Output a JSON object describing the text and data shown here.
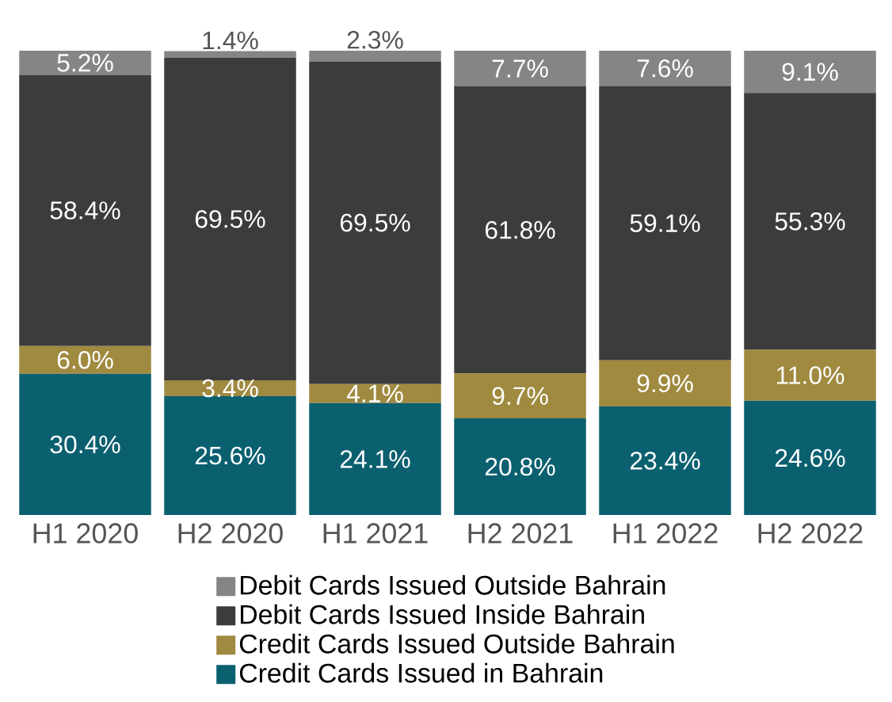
{
  "chart_data": {
    "type": "bar",
    "stacked": true,
    "categories": [
      "H1 2020",
      "H2 2020",
      "H1 2021",
      "H2 2021",
      "H1 2022",
      "H2 2022"
    ],
    "ylim": [
      0,
      100
    ],
    "tick_labels": "x",
    "legend": "bottom",
    "series": [
      {
        "name": "Credit Cards Issued in Bahrain",
        "color": "#0b6070",
        "values": [
          30.4,
          25.6,
          24.1,
          20.8,
          23.4,
          24.6
        ],
        "value_labels": [
          "30.4%",
          "25.6%",
          "24.1%",
          "20.8%",
          "23.4%",
          "24.6%"
        ]
      },
      {
        "name": "Credit Cards Issued Outside Bahrain",
        "color": "#a08a40",
        "values": [
          6.0,
          3.4,
          4.1,
          9.7,
          9.9,
          11.0
        ],
        "value_labels": [
          "6.0%",
          "3.4%",
          "4.1%",
          "9.7%",
          "9.9%",
          "11.0%"
        ]
      },
      {
        "name": "Debit Cards Issued Inside Bahrain",
        "color": "#3c3c3c",
        "values": [
          58.4,
          69.5,
          69.5,
          61.8,
          59.1,
          55.3
        ],
        "value_labels": [
          "58.4%",
          "69.5%",
          "69.5%",
          "61.8%",
          "59.1%",
          "55.3%"
        ]
      },
      {
        "name": "Debit Cards Issued Outside Bahrain",
        "color": "#858585",
        "values": [
          5.2,
          1.4,
          2.3,
          7.7,
          7.6,
          9.1
        ],
        "value_labels": [
          "5.2%",
          "1.4%",
          "2.3%",
          "7.7%",
          "7.6%",
          "9.1%"
        ]
      }
    ]
  }
}
